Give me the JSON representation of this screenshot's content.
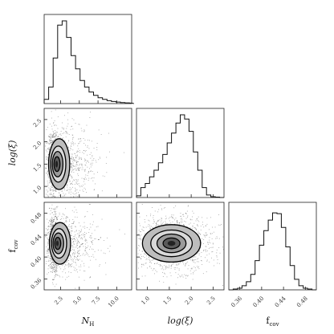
{
  "chart_data": {
    "type": "corner",
    "parameters": [
      {
        "key": "nh",
        "label": "N",
        "label_sub": "H",
        "range": [
          0.3,
          12.0
        ],
        "ticks": [
          2.5,
          5.0,
          7.5,
          10.0
        ],
        "tick_labels": [
          "2.5",
          "5.0",
          "7.5",
          "10.0"
        ]
      },
      {
        "key": "logxi",
        "label": "log(ξ)",
        "range": [
          0.75,
          2.75
        ],
        "ticks": [
          1.0,
          1.5,
          2.0,
          2.5
        ],
        "tick_labels": [
          "1.0",
          "1.5",
          "2.0",
          "2.5"
        ]
      },
      {
        "key": "fcov",
        "label": "f",
        "label_sub": "cov",
        "range": [
          0.34,
          0.5
        ],
        "ticks": [
          0.36,
          0.4,
          0.44,
          0.48
        ],
        "tick_labels": [
          "0.36",
          "0.40",
          "0.44",
          "0.48"
        ]
      }
    ],
    "histograms": [
      {
        "parameter": "nh",
        "bin_start": 0.3,
        "bin_width": 0.6,
        "counts": [
          0.05,
          0.2,
          0.55,
          0.95,
          1.0,
          0.8,
          0.58,
          0.42,
          0.28,
          0.2,
          0.14,
          0.1,
          0.07,
          0.05,
          0.035,
          0.025,
          0.018,
          0.012,
          0.009,
          0.006
        ]
      },
      {
        "parameter": "logxi",
        "bin_start": 0.75,
        "bin_width": 0.1,
        "counts": [
          0.02,
          0.12,
          0.17,
          0.25,
          0.33,
          0.42,
          0.52,
          0.66,
          0.78,
          0.9,
          1.0,
          0.95,
          0.8,
          0.55,
          0.33,
          0.12,
          0.03,
          0.01,
          0.005,
          0.0
        ]
      },
      {
        "parameter": "fcov",
        "bin_start": 0.34,
        "bin_width": 0.008,
        "counts": [
          0.0,
          0.01,
          0.02,
          0.05,
          0.1,
          0.19,
          0.36,
          0.55,
          0.73,
          0.86,
          0.95,
          0.94,
          0.77,
          0.53,
          0.3,
          0.13,
          0.05,
          0.02,
          0.01,
          0.0
        ]
      }
    ],
    "joint_distributions": [
      {
        "x": "nh",
        "y": "logxi",
        "peak": [
          1.9,
          1.5
        ],
        "spread": [
          1.2,
          0.3
        ]
      },
      {
        "x": "nh",
        "y": "fcov",
        "peak": [
          2.0,
          0.425
        ],
        "spread": [
          1.2,
          0.02
        ]
      },
      {
        "x": "logxi",
        "y": "fcov",
        "peak": [
          1.55,
          0.425
        ],
        "spread": [
          0.35,
          0.018
        ]
      }
    ],
    "contour_levels": 4,
    "grid": false
  }
}
